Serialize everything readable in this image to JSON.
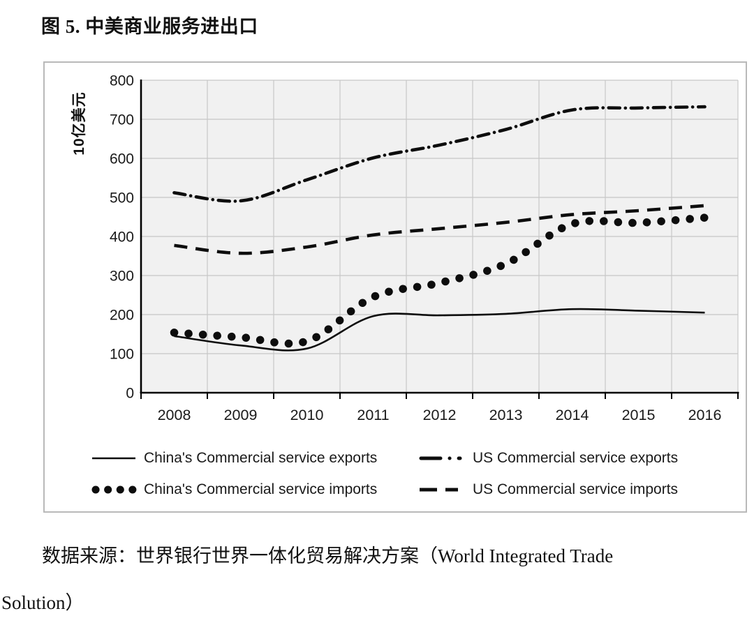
{
  "page": {
    "title": "图 5. 中美商业服务进出口",
    "source_line1": "数据来源：世界银行世界一体化贸易解决方案（World Integrated Trade",
    "source_line2": "Solution）"
  },
  "chart_data": {
    "type": "line",
    "title": "图 5. 中美商业服务进出口",
    "categories": [
      "2008",
      "2009",
      "2010",
      "2011",
      "2012",
      "2013",
      "2014",
      "2015",
      "2016"
    ],
    "series": [
      {
        "name": "China's Commercial service exports",
        "style": "solid",
        "values": [
          145,
          121,
          113,
          196,
          198,
          202,
          214,
          210,
          205
        ]
      },
      {
        "name": "US Commercial service exports",
        "style": "dash-dot",
        "values": [
          512,
          491,
          545,
          601,
          634,
          674,
          724,
          729,
          732
        ]
      },
      {
        "name": "China's Commercial service imports",
        "style": "dotted",
        "values": [
          154,
          142,
          132,
          245,
          281,
          330,
          432,
          435,
          448
        ]
      },
      {
        "name": "US Commercial service imports",
        "style": "dashed",
        "values": [
          377,
          357,
          373,
          404,
          420,
          436,
          456,
          466,
          479
        ]
      }
    ],
    "xlabel": "",
    "ylabel": "10亿美元",
    "ylim": [
      0,
      800
    ],
    "ytick_step": 100,
    "grid": true,
    "legend_position": "bottom",
    "colors": {
      "line": "#0d0d0d",
      "grid": "#c7c7c7",
      "plot_bg": "#f1f1f1",
      "card_border": "#b9b9b9",
      "text": "#1a1a1a"
    }
  }
}
